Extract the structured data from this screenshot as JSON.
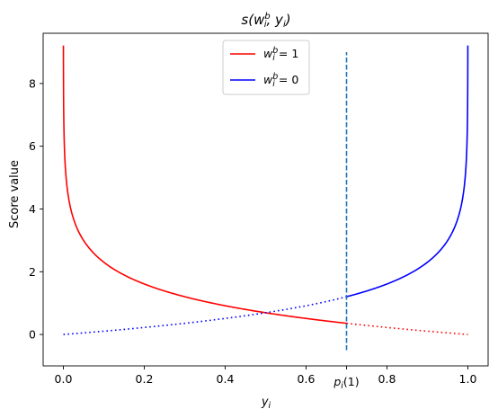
{
  "chart_data": {
    "type": "line",
    "title": "s(w_i^b, y_i)",
    "xlabel": "y_i",
    "ylabel": "Score value",
    "xlim": [
      -0.05,
      1.05
    ],
    "ylim": [
      -1.0,
      9.6
    ],
    "grid": false,
    "legend_position": "top-center",
    "x_ticks": [
      0.0,
      0.2,
      0.4,
      0.6,
      0.8,
      1.0
    ],
    "x_tick_labels": [
      "0.0",
      "0.2",
      "0.4",
      "0.6",
      "0.8",
      "1.0"
    ],
    "extra_x_tick": {
      "value": 0.7,
      "label": "p_i(1)"
    },
    "y_ticks": [
      0,
      2,
      4,
      6,
      8
    ],
    "y_tick_labels": [
      "0",
      "2",
      "4",
      "6",
      "8"
    ],
    "threshold": {
      "x": 0.7,
      "y_range": [
        -0.5,
        9.0
      ],
      "style": "dashed",
      "color": "#1f77b4"
    },
    "series": [
      {
        "name": "w_i^b = 1",
        "color": "#ff0000",
        "function": "-ln(y)",
        "x": [
          0.0001,
          0.005,
          0.01,
          0.02,
          0.05,
          0.1,
          0.2,
          0.3,
          0.4,
          0.5,
          0.6,
          0.7,
          0.8,
          0.9,
          0.9999
        ],
        "values": [
          9.21,
          5.3,
          4.61,
          3.91,
          3.0,
          2.3,
          1.61,
          1.2,
          0.92,
          0.69,
          0.51,
          0.36,
          0.22,
          0.11,
          0.0
        ],
        "solid_x_range": [
          0.0,
          0.7
        ],
        "dotted_x_range": [
          0.7,
          1.0
        ]
      },
      {
        "name": "w_i^b = 0",
        "color": "#0000ff",
        "function": "-ln(1-y)",
        "x": [
          0.0001,
          0.1,
          0.2,
          0.3,
          0.4,
          0.5,
          0.6,
          0.7,
          0.8,
          0.9,
          0.95,
          0.98,
          0.99,
          0.995,
          0.9999
        ],
        "values": [
          0.0,
          0.11,
          0.22,
          0.36,
          0.51,
          0.69,
          0.92,
          1.2,
          1.61,
          2.3,
          3.0,
          3.91,
          4.61,
          5.3,
          9.21
        ],
        "solid_x_range": [
          0.7,
          1.0
        ],
        "dotted_x_range": [
          0.0,
          0.7
        ]
      }
    ]
  },
  "legend": {
    "items": [
      {
        "base": "w",
        "sup": "b",
        "sub": "i",
        "rest": " = 1",
        "color": "#ff0000"
      },
      {
        "base": "w",
        "sup": "b",
        "sub": "i",
        "rest": " = 0",
        "color": "#0000ff"
      }
    ]
  },
  "title_parts": {
    "pre": "s(",
    "base": "w",
    "sup": "b",
    "sub": "i",
    "mid": ", ",
    "y": "y",
    "ysub": "i",
    "post": ")"
  },
  "xlabel_parts": {
    "base": "y",
    "sub": "i"
  },
  "extra_tick_parts": {
    "base": "p",
    "sub": "i",
    "rest": "(1)"
  }
}
